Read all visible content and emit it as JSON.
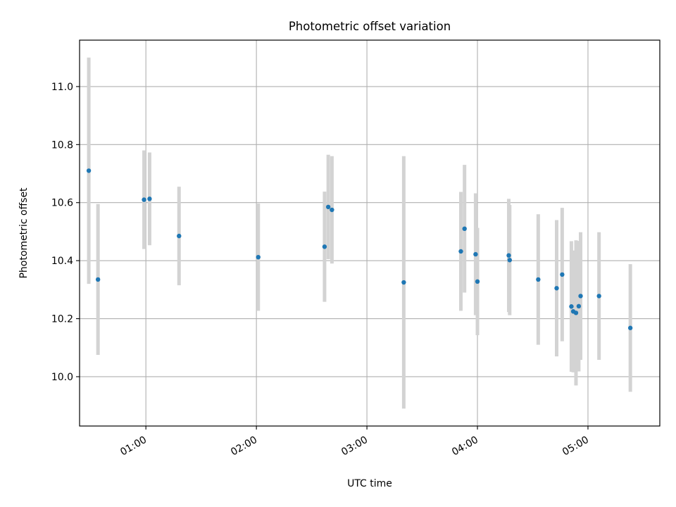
{
  "chart_data": {
    "type": "scatter",
    "title": "Photometric offset variation",
    "xlabel": "UTC time",
    "ylabel": "Photometric offset",
    "xlim": [
      "00:24:00",
      "05:39:00"
    ],
    "ylim": [
      9.83,
      11.16
    ],
    "x_ticks": [
      "01:00",
      "02:00",
      "03:00",
      "04:00",
      "05:00"
    ],
    "y_ticks": [
      "10.0",
      "10.2",
      "10.4",
      "10.6",
      "10.8",
      "11.0"
    ],
    "grid": true,
    "colors": {
      "point": "#1f77b4",
      "error_bar": "#d3d3d3",
      "grid": "#b0b0b0"
    },
    "series": [
      {
        "points": [
          {
            "x": "00:29:00",
            "y": 10.71,
            "err": 0.39
          },
          {
            "x": "00:34:00",
            "y": 10.335,
            "err": 0.26
          },
          {
            "x": "00:59:00",
            "y": 10.61,
            "err": 0.17
          },
          {
            "x": "01:02:00",
            "y": 10.613,
            "err": 0.16
          },
          {
            "x": "01:18:00",
            "y": 10.485,
            "err": 0.17
          },
          {
            "x": "02:01:00",
            "y": 10.412,
            "err": 0.185
          },
          {
            "x": "02:37:00",
            "y": 10.448,
            "err": 0.19
          },
          {
            "x": "02:39:00",
            "y": 10.585,
            "err": 0.18
          },
          {
            "x": "02:41:00",
            "y": 10.575,
            "err": 0.185
          },
          {
            "x": "03:20:00",
            "y": 10.325,
            "err": 0.435
          },
          {
            "x": "03:51:00",
            "y": 10.432,
            "err": 0.205
          },
          {
            "x": "03:53:00",
            "y": 10.51,
            "err": 0.22
          },
          {
            "x": "03:59:00",
            "y": 10.422,
            "err": 0.21
          },
          {
            "x": "04:00:00",
            "y": 10.328,
            "err": 0.185
          },
          {
            "x": "04:17:00",
            "y": 10.418,
            "err": 0.195
          },
          {
            "x": "04:17:30",
            "y": 10.402,
            "err": 0.19
          },
          {
            "x": "04:33:00",
            "y": 10.335,
            "err": 0.225
          },
          {
            "x": "04:43:00",
            "y": 10.305,
            "err": 0.235
          },
          {
            "x": "04:46:00",
            "y": 10.352,
            "err": 0.23
          },
          {
            "x": "04:51:00",
            "y": 10.242,
            "err": 0.225
          },
          {
            "x": "04:52:00",
            "y": 10.225,
            "err": 0.21
          },
          {
            "x": "04:53:30",
            "y": 10.22,
            "err": 0.25
          },
          {
            "x": "04:55:00",
            "y": 10.243,
            "err": 0.225
          },
          {
            "x": "04:56:00",
            "y": 10.278,
            "err": 0.22
          },
          {
            "x": "05:06:00",
            "y": 10.278,
            "err": 0.22
          },
          {
            "x": "05:23:00",
            "y": 10.168,
            "err": 0.22
          }
        ]
      }
    ]
  }
}
